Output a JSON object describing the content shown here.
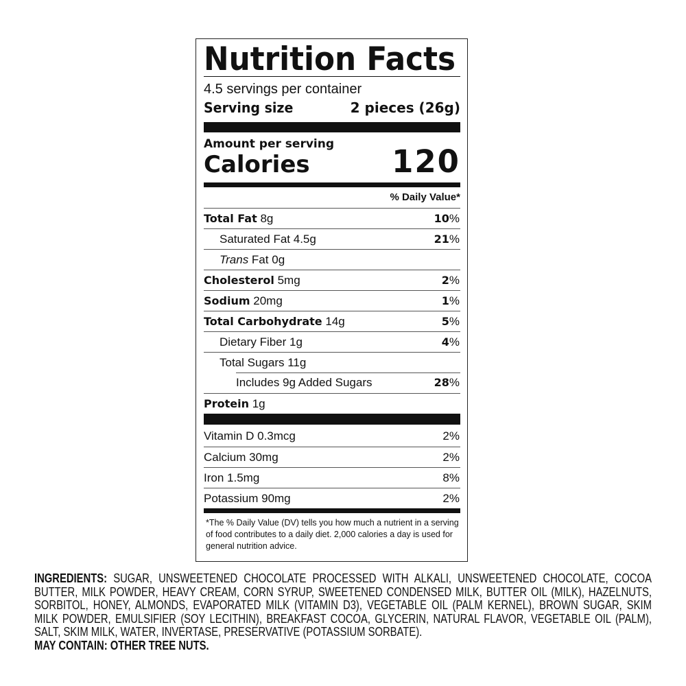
{
  "label": {
    "title": "Nutrition Facts",
    "servings": "4.5 servings per container",
    "serving_size_label": "Serving size",
    "serving_size_value": "2 pieces (26g)",
    "amount_per_serving": "Amount per serving",
    "calories_label": "Calories",
    "calories_value": "120",
    "dv_header": "% Daily Value*",
    "nutrients": [
      {
        "name": "Total Fat",
        "amount": "8g",
        "dv": "10",
        "indent": 0,
        "bold": true
      },
      {
        "name": "Saturated Fat",
        "amount": "4.5g",
        "dv": "21",
        "indent": 1,
        "bold": false
      },
      {
        "name": "Trans",
        "name_suffix": " Fat",
        "amount": "0g",
        "dv": "",
        "indent": 1,
        "bold": false,
        "italic": true
      },
      {
        "name": "Cholesterol",
        "amount": "5mg",
        "dv": "2",
        "indent": 0,
        "bold": true
      },
      {
        "name": "Sodium",
        "amount": "20mg",
        "dv": "1",
        "indent": 0,
        "bold": true
      },
      {
        "name": "Total Carbohydrate",
        "amount": "14g",
        "dv": "5",
        "indent": 0,
        "bold": true
      },
      {
        "name": "Dietary Fiber",
        "amount": "1g",
        "dv": "4",
        "indent": 1,
        "bold": false
      },
      {
        "name": "Total Sugars",
        "amount": "11g",
        "dv": "",
        "indent": 1,
        "bold": false
      },
      {
        "name": "Includes 9g Added Sugars",
        "amount": "",
        "dv": "28",
        "indent": 2,
        "bold": false
      },
      {
        "name": "Protein",
        "amount": "1g",
        "dv": "",
        "indent": 0,
        "bold": true
      }
    ],
    "vitamins": [
      {
        "name": "Vitamin D",
        "amount": "0.3mcg",
        "dv": "2%"
      },
      {
        "name": "Calcium",
        "amount": "30mg",
        "dv": "2%"
      },
      {
        "name": "Iron",
        "amount": "1.5mg",
        "dv": "8%"
      },
      {
        "name": "Potassium",
        "amount": "90mg",
        "dv": "2%"
      }
    ],
    "footnote": "*The % Daily Value (DV) tells you how much a nutrient in a serving of food contributes to a daily diet. 2,000 calories a day is used for general nutrition advice."
  },
  "ingredients": {
    "heading": "INGREDIENTS:",
    "lines": [
      " SUGAR, UNSWEETENED CHOCOLATE PROCESSED WITH ALKALI, UNSWEETENED CHOCOLATE, COCOA",
      "BUTTER, MILK POWDER, HEAVY CREAM, CORN SYRUP, SWEETENED CONDENSED MILK, BUTTER OIL (MILK), HAZELNUTS,",
      "SORBITOL, HONEY, ALMONDS, EVAPORATED MILK (VITAMIN D3), VEGETABLE OIL (PALM KERNEL), BROWN SUGAR, SKIM",
      "MILK POWDER, EMULSIFIER (SOY LECITHIN), BREAKFAST COCOA, GLYCERIN, NATURAL FLAVOR, VEGETABLE OIL (PALM),",
      "SALT, SKIM MILK, WATER, INVERTASE, PRESERVATIVE (POTASSIUM SORBATE)."
    ],
    "may_contain": "MAY CONTAIN: OTHER TREE NUTS."
  }
}
